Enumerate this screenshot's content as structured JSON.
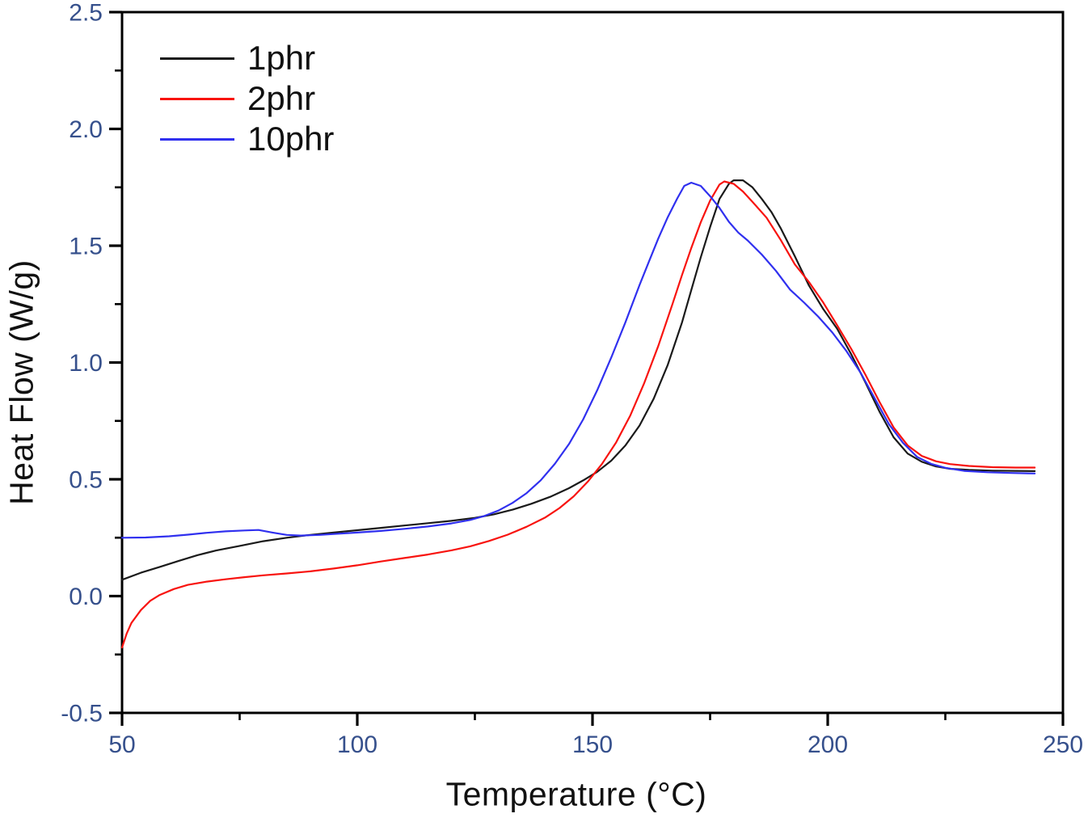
{
  "figure": {
    "background": "#ffffff",
    "frame_color": "#000000",
    "tick_label_color": "#36508c",
    "text_color": "#111111"
  },
  "chart_data": {
    "type": "line",
    "title": "",
    "xlabel": "Temperature (°C)",
    "ylabel": "Heat Flow (W/g)",
    "xlim": [
      50,
      250
    ],
    "ylim": [
      -0.5,
      2.5
    ],
    "grid": false,
    "legend_position": "upper-left",
    "x_major_ticks": [
      50,
      100,
      150,
      200,
      250
    ],
    "x_major_tick_labels": [
      "50",
      "100",
      "150",
      "200",
      "250"
    ],
    "x_minor_ticks": [
      75,
      125,
      175,
      225
    ],
    "y_major_ticks": [
      -0.5,
      0.0,
      0.5,
      1.0,
      1.5,
      2.0,
      2.5
    ],
    "y_major_tick_labels": [
      "-0.5",
      "0.0",
      "0.5",
      "1.0",
      "1.5",
      "2.0",
      "2.5"
    ],
    "y_minor_ticks": [
      -0.25,
      0.25,
      0.75,
      1.25,
      1.75,
      2.25
    ],
    "series": [
      {
        "name": "1phr",
        "color": "#1a1a1a",
        "points": [
          [
            50,
            0.07
          ],
          [
            54,
            0.1
          ],
          [
            58,
            0.125
          ],
          [
            62,
            0.15
          ],
          [
            66,
            0.175
          ],
          [
            70,
            0.195
          ],
          [
            75,
            0.215
          ],
          [
            80,
            0.235
          ],
          [
            85,
            0.25
          ],
          [
            90,
            0.262
          ],
          [
            95,
            0.272
          ],
          [
            100,
            0.282
          ],
          [
            105,
            0.292
          ],
          [
            110,
            0.302
          ],
          [
            115,
            0.312
          ],
          [
            120,
            0.322
          ],
          [
            125,
            0.335
          ],
          [
            129,
            0.35
          ],
          [
            133,
            0.37
          ],
          [
            137,
            0.395
          ],
          [
            141,
            0.425
          ],
          [
            145,
            0.462
          ],
          [
            148,
            0.495
          ],
          [
            151,
            0.532
          ],
          [
            154,
            0.58
          ],
          [
            157,
            0.645
          ],
          [
            160,
            0.73
          ],
          [
            163,
            0.845
          ],
          [
            166,
            0.99
          ],
          [
            169,
            1.17
          ],
          [
            171,
            1.31
          ],
          [
            173,
            1.45
          ],
          [
            175,
            1.58
          ],
          [
            177,
            1.7
          ],
          [
            179,
            1.765
          ],
          [
            180,
            1.78
          ],
          [
            182,
            1.78
          ],
          [
            184,
            1.75
          ],
          [
            186,
            1.7
          ],
          [
            188,
            1.645
          ],
          [
            190,
            1.575
          ],
          [
            193,
            1.455
          ],
          [
            196,
            1.33
          ],
          [
            199,
            1.23
          ],
          [
            202,
            1.145
          ],
          [
            205,
            1.035
          ],
          [
            208,
            0.915
          ],
          [
            211,
            0.79
          ],
          [
            214,
            0.68
          ],
          [
            217,
            0.61
          ],
          [
            220,
            0.575
          ],
          [
            223,
            0.555
          ],
          [
            226,
            0.545
          ],
          [
            230,
            0.54
          ],
          [
            235,
            0.537
          ],
          [
            240,
            0.536
          ],
          [
            244,
            0.535
          ]
        ]
      },
      {
        "name": "2phr",
        "color": "#f8130f",
        "points": [
          [
            50,
            -0.22
          ],
          [
            51,
            -0.16
          ],
          [
            52,
            -0.115
          ],
          [
            54,
            -0.06
          ],
          [
            56,
            -0.02
          ],
          [
            58,
            0.005
          ],
          [
            61,
            0.03
          ],
          [
            64,
            0.048
          ],
          [
            68,
            0.062
          ],
          [
            72,
            0.072
          ],
          [
            76,
            0.081
          ],
          [
            80,
            0.089
          ],
          [
            85,
            0.097
          ],
          [
            90,
            0.106
          ],
          [
            95,
            0.118
          ],
          [
            100,
            0.132
          ],
          [
            105,
            0.148
          ],
          [
            110,
            0.163
          ],
          [
            115,
            0.178
          ],
          [
            120,
            0.196
          ],
          [
            124,
            0.213
          ],
          [
            128,
            0.236
          ],
          [
            132,
            0.263
          ],
          [
            136,
            0.297
          ],
          [
            140,
            0.337
          ],
          [
            143,
            0.377
          ],
          [
            146,
            0.427
          ],
          [
            149,
            0.49
          ],
          [
            152,
            0.565
          ],
          [
            155,
            0.657
          ],
          [
            158,
            0.772
          ],
          [
            161,
            0.912
          ],
          [
            164,
            1.072
          ],
          [
            167,
            1.25
          ],
          [
            169,
            1.373
          ],
          [
            171,
            1.49
          ],
          [
            173,
            1.6
          ],
          [
            175,
            1.693
          ],
          [
            177,
            1.762
          ],
          [
            178,
            1.775
          ],
          [
            180,
            1.765
          ],
          [
            182,
            1.732
          ],
          [
            184,
            1.688
          ],
          [
            187,
            1.62
          ],
          [
            190,
            1.525
          ],
          [
            193,
            1.42
          ],
          [
            196,
            1.345
          ],
          [
            199,
            1.258
          ],
          [
            202,
            1.16
          ],
          [
            205,
            1.058
          ],
          [
            208,
            0.948
          ],
          [
            211,
            0.832
          ],
          [
            214,
            0.722
          ],
          [
            217,
            0.645
          ],
          [
            220,
            0.6
          ],
          [
            223,
            0.577
          ],
          [
            226,
            0.565
          ],
          [
            230,
            0.557
          ],
          [
            235,
            0.552
          ],
          [
            240,
            0.55
          ],
          [
            244,
            0.55
          ]
        ]
      },
      {
        "name": "10phr",
        "color": "#3030ef",
        "points": [
          [
            50,
            0.25
          ],
          [
            55,
            0.251
          ],
          [
            60,
            0.256
          ],
          [
            64,
            0.263
          ],
          [
            68,
            0.271
          ],
          [
            72,
            0.277
          ],
          [
            76,
            0.281
          ],
          [
            79,
            0.283
          ],
          [
            82,
            0.272
          ],
          [
            85,
            0.262
          ],
          [
            88,
            0.259
          ],
          [
            92,
            0.262
          ],
          [
            96,
            0.267
          ],
          [
            100,
            0.272
          ],
          [
            105,
            0.279
          ],
          [
            110,
            0.288
          ],
          [
            115,
            0.298
          ],
          [
            120,
            0.311
          ],
          [
            124,
            0.326
          ],
          [
            127,
            0.343
          ],
          [
            130,
            0.366
          ],
          [
            133,
            0.399
          ],
          [
            136,
            0.441
          ],
          [
            139,
            0.496
          ],
          [
            142,
            0.566
          ],
          [
            145,
            0.651
          ],
          [
            148,
            0.756
          ],
          [
            151,
            0.881
          ],
          [
            154,
            1.022
          ],
          [
            157,
            1.172
          ],
          [
            160,
            1.332
          ],
          [
            162,
            1.432
          ],
          [
            164,
            1.532
          ],
          [
            166,
            1.622
          ],
          [
            168,
            1.702
          ],
          [
            169.5,
            1.756
          ],
          [
            171,
            1.77
          ],
          [
            173,
            1.756
          ],
          [
            175,
            1.712
          ],
          [
            177,
            1.662
          ],
          [
            179,
            1.602
          ],
          [
            181,
            1.556
          ],
          [
            183,
            1.522
          ],
          [
            186,
            1.462
          ],
          [
            189,
            1.392
          ],
          [
            192,
            1.312
          ],
          [
            195,
            1.256
          ],
          [
            198,
            1.196
          ],
          [
            201,
            1.128
          ],
          [
            204,
            1.048
          ],
          [
            207,
            0.956
          ],
          [
            210,
            0.846
          ],
          [
            213,
            0.736
          ],
          [
            216,
            0.656
          ],
          [
            219,
            0.596
          ],
          [
            222,
            0.566
          ],
          [
            225,
            0.549
          ],
          [
            229,
            0.536
          ],
          [
            234,
            0.53
          ],
          [
            239,
            0.527
          ],
          [
            244,
            0.525
          ]
        ]
      }
    ]
  }
}
